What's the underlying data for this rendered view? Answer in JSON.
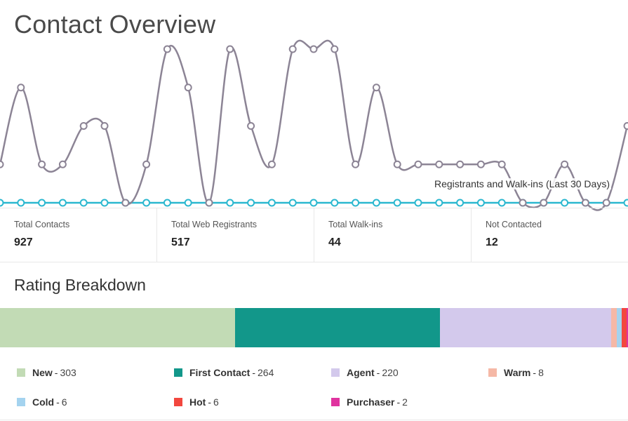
{
  "page_title": "Contact Overview",
  "chart_data": {
    "type": "line",
    "label": "Registrants and Walk-ins (Last 30 Days)",
    "x_count": 31,
    "y_range": [
      0,
      4
    ],
    "series": [
      {
        "name": "Registrants",
        "color": "#8c8495",
        "values": [
          1,
          3,
          1,
          1,
          2,
          2,
          0,
          1,
          4,
          3,
          0,
          4,
          2,
          1,
          4,
          4,
          4,
          1,
          3,
          1,
          1,
          1,
          1,
          1,
          1,
          0,
          0,
          1,
          0,
          0,
          2
        ]
      },
      {
        "name": "Walk-ins",
        "color": "#2bb7cf",
        "values": [
          0,
          0,
          0,
          0,
          0,
          0,
          0,
          0,
          0,
          0,
          0,
          0,
          0,
          0,
          0,
          0,
          0,
          0,
          0,
          0,
          0,
          0,
          0,
          0,
          0,
          0,
          0,
          0,
          0,
          0,
          0
        ]
      }
    ]
  },
  "stats": [
    {
      "label": "Total Contacts",
      "value": "927"
    },
    {
      "label": "Total Web Registrants",
      "value": "517"
    },
    {
      "label": "Total Walk-ins",
      "value": "44"
    },
    {
      "label": "Not Contacted",
      "value": "12"
    }
  ],
  "rating_breakdown": {
    "title": "Rating Breakdown",
    "items": [
      {
        "name": "New",
        "count": 303,
        "color": "#c2dbb5"
      },
      {
        "name": "First Contact",
        "count": 264,
        "color": "#12978a"
      },
      {
        "name": "Agent",
        "count": 220,
        "color": "#d3c9ec"
      },
      {
        "name": "Warm",
        "count": 8,
        "color": "#f5b8a6"
      },
      {
        "name": "Cold",
        "count": 6,
        "color": "#a4d3ef"
      },
      {
        "name": "Hot",
        "count": 6,
        "color": "#f2473e"
      },
      {
        "name": "Purchaser",
        "count": 2,
        "color": "#e0339f"
      }
    ]
  }
}
